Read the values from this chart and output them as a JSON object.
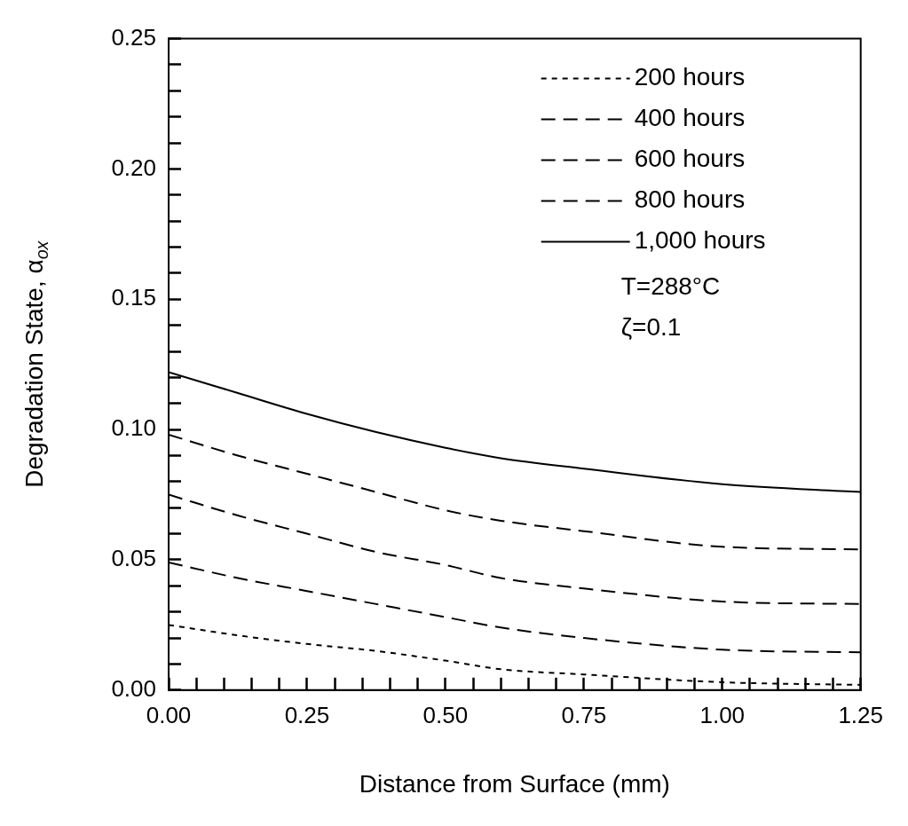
{
  "chart_data": {
    "type": "line",
    "xlabel": "Distance from Surface (mm)",
    "ylabel": "Degradation State, α$_{ox}$",
    "x": [
      0,
      0.125,
      0.25,
      0.375,
      0.5,
      0.6,
      0.75,
      1.0,
      1.25
    ],
    "series": [
      {
        "name": "200 hours",
        "color": "#000000",
        "line_style": "dotted",
        "values": [
          0.025,
          0.021,
          0.0177,
          0.015,
          0.0113,
          0.008,
          0.006,
          0.003,
          0.002
        ]
      },
      {
        "name": "400 hours",
        "color": "#000000",
        "line_style": "dashed",
        "values": [
          0.049,
          0.043,
          0.038,
          0.033,
          0.028,
          0.024,
          0.02,
          0.0155,
          0.0145
        ]
      },
      {
        "name": "600 hours",
        "color": "#000000",
        "line_style": "dashed",
        "values": [
          0.075,
          0.067,
          0.06,
          0.053,
          0.048,
          0.043,
          0.039,
          0.034,
          0.033
        ]
      },
      {
        "name": "800 hours",
        "color": "#000000",
        "line_style": "dashed",
        "values": [
          0.098,
          0.09,
          0.083,
          0.076,
          0.069,
          0.065,
          0.061,
          0.055,
          0.054
        ]
      },
      {
        "name": "1,000 hours",
        "color": "#000000",
        "line_style": "solid",
        "values": [
          0.122,
          0.114,
          0.106,
          0.099,
          0.093,
          0.089,
          0.085,
          0.079,
          0.076
        ]
      }
    ],
    "xlim": [
      0,
      1.25
    ],
    "xticks": [
      {
        "value": 0,
        "label": "0.00"
      },
      {
        "value": 0.05,
        "label": null
      },
      {
        "value": 0.1,
        "label": null
      },
      {
        "value": 0.15,
        "label": null
      },
      {
        "value": 0.2,
        "label": null
      },
      {
        "value": 0.25,
        "label": "0.25"
      },
      {
        "value": 0.3,
        "label": null
      },
      {
        "value": 0.35,
        "label": null
      },
      {
        "value": 0.4,
        "label": null
      },
      {
        "value": 0.45,
        "label": null
      },
      {
        "value": 0.5,
        "label": "0.50"
      },
      {
        "value": 0.55,
        "label": null
      },
      {
        "value": 0.6,
        "label": null
      },
      {
        "value": 0.65,
        "label": null
      },
      {
        "value": 0.7,
        "label": null
      },
      {
        "value": 0.75,
        "label": "0.75"
      },
      {
        "value": 0.8,
        "label": null
      },
      {
        "value": 0.85,
        "label": null
      },
      {
        "value": 0.9,
        "label": null
      },
      {
        "value": 0.95,
        "label": null
      },
      {
        "value": 1.0,
        "label": "1.00"
      },
      {
        "value": 1.05,
        "label": null
      },
      {
        "value": 1.1,
        "label": null
      },
      {
        "value": 1.15,
        "label": null
      },
      {
        "value": 1.2,
        "label": null
      },
      {
        "value": 1.25,
        "label": "1.25"
      }
    ],
    "ylim": [
      0,
      0.25
    ],
    "yticks": [
      {
        "value": 0,
        "label": "0.00"
      },
      {
        "value": 0.01,
        "label": null
      },
      {
        "value": 0.02,
        "label": null
      },
      {
        "value": 0.03,
        "label": null
      },
      {
        "value": 0.04,
        "label": null
      },
      {
        "value": 0.05,
        "label": "0.05"
      },
      {
        "value": 0.06,
        "label": null
      },
      {
        "value": 0.07,
        "label": null
      },
      {
        "value": 0.08,
        "label": null
      },
      {
        "value": 0.09,
        "label": null
      },
      {
        "value": 0.1,
        "label": "0.10"
      },
      {
        "value": 0.11,
        "label": null
      },
      {
        "value": 0.12,
        "label": null
      },
      {
        "value": 0.13,
        "label": null
      },
      {
        "value": 0.14,
        "label": null
      },
      {
        "value": 0.15,
        "label": "0.15"
      },
      {
        "value": 0.16,
        "label": null
      },
      {
        "value": 0.17,
        "label": null
      },
      {
        "value": 0.18,
        "label": null
      },
      {
        "value": 0.19,
        "label": null
      },
      {
        "value": 0.2,
        "label": "0.20"
      },
      {
        "value": 0.21,
        "label": null
      },
      {
        "value": 0.22,
        "label": null
      },
      {
        "value": 0.23,
        "label": null
      },
      {
        "value": 0.24,
        "label": null
      },
      {
        "value": 0.25,
        "label": "0.25"
      }
    ],
    "grid": false,
    "legend": "top right",
    "annotations": [
      "T=288°C",
      "ζ=0.1"
    ]
  }
}
